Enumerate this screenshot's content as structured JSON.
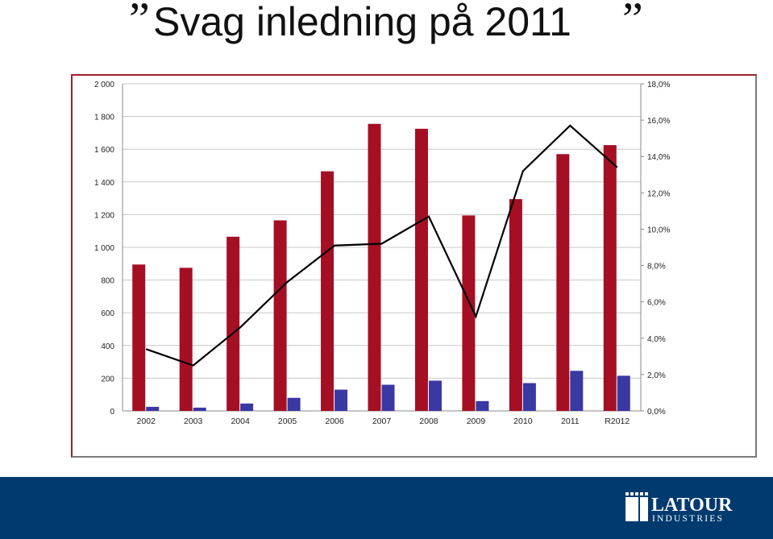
{
  "page": {
    "title": "Svag inledning på 2011",
    "logo_text": "LATOUR INDUSTRIES"
  },
  "colors": {
    "bar_primary": "#a50f23",
    "bar_secondary": "#3a38a3",
    "line": "#000000",
    "footer": "#003a6e",
    "frame": "#a01f2a"
  },
  "chart_data": {
    "type": "bar",
    "categories": [
      "2002",
      "2003",
      "2004",
      "2005",
      "2006",
      "2007",
      "2008",
      "2009",
      "2010",
      "2011",
      "R2012"
    ],
    "series": [
      {
        "type": "bar",
        "axis": "left",
        "color": "#a50f23",
        "values": [
          895,
          875,
          1065,
          1165,
          1465,
          1755,
          1725,
          1195,
          1295,
          1570,
          1625
        ]
      },
      {
        "type": "bar",
        "axis": "left",
        "color": "#3a38a3",
        "values": [
          25,
          20,
          45,
          80,
          130,
          160,
          185,
          60,
          170,
          245,
          215
        ]
      },
      {
        "type": "line",
        "axis": "right",
        "color": "#000000",
        "values": [
          3.4,
          2.5,
          4.6,
          7.1,
          9.1,
          9.2,
          10.7,
          5.2,
          13.2,
          15.7,
          13.4
        ]
      }
    ],
    "y_left": {
      "min": 0,
      "max": 2000,
      "ticks": [
        "0",
        "200",
        "400",
        "600",
        "800",
        "1 000",
        "1 200",
        "1 400",
        "1 600",
        "1 800",
        "2 000"
      ]
    },
    "y_right": {
      "min": 0,
      "max": 18,
      "ticks": [
        "0,0%",
        "2,0%",
        "4,0%",
        "6,0%",
        "8,0%",
        "10,0%",
        "12,0%",
        "14,0%",
        "16,0%",
        "18,0%"
      ]
    },
    "grid": true
  }
}
